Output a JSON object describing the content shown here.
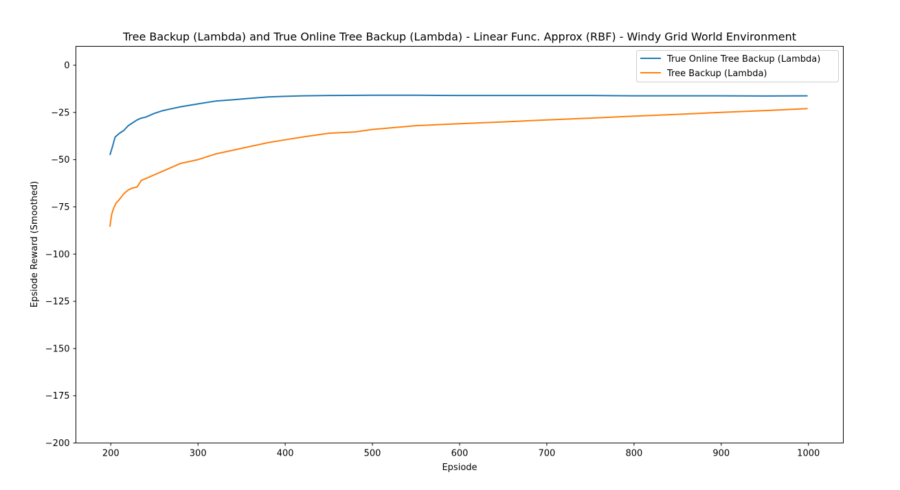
{
  "chart_data": {
    "type": "line",
    "title": "Tree Backup (Lambda) and True Online Tree Backup (Lambda) - Linear Func. Approx (RBF) - Windy Grid World Environment",
    "xlabel": "Epsiode",
    "ylabel": "Epsiode Reward (Smoothed)",
    "xlim": [
      160,
      1040
    ],
    "ylim": [
      -200,
      10
    ],
    "xticks": [
      200,
      300,
      400,
      500,
      600,
      700,
      800,
      900,
      1000
    ],
    "yticks": [
      0,
      -25,
      -50,
      -75,
      -100,
      -125,
      -150,
      -175,
      -200
    ],
    "xtick_labels": [
      "200",
      "300",
      "400",
      "500",
      "600",
      "700",
      "800",
      "900",
      "1000"
    ],
    "ytick_labels": [
      "0",
      "−25",
      "−50",
      "−75",
      "−100",
      "−125",
      "−150",
      "−175",
      "−200"
    ],
    "grid": false,
    "legend_position": "top-right",
    "series": [
      {
        "name": "True Online Tree Backup (Lambda)",
        "color": "#1f77b4",
        "x": [
          199,
          202,
          205,
          210,
          215,
          220,
          225,
          230,
          235,
          240,
          250,
          260,
          270,
          280,
          300,
          320,
          340,
          360,
          380,
          400,
          420,
          450,
          500,
          550,
          600,
          650,
          700,
          750,
          800,
          850,
          900,
          950,
          999
        ],
        "y": [
          -47.5,
          -43,
          -38,
          -36,
          -34.5,
          -32,
          -30.5,
          -29,
          -28,
          -27.5,
          -25.5,
          -24,
          -23,
          -22,
          -20.5,
          -19,
          -18.3,
          -17.5,
          -16.8,
          -16.5,
          -16.2,
          -16,
          -15.9,
          -15.9,
          -16,
          -16,
          -16,
          -16,
          -16.2,
          -16.2,
          -16.2,
          -16.3,
          -16.2
        ]
      },
      {
        "name": "Tree Backup (Lambda)",
        "color": "#ff7f0e",
        "x": [
          199,
          201,
          203,
          206,
          210,
          215,
          220,
          225,
          230,
          235,
          240,
          250,
          260,
          270,
          280,
          300,
          320,
          340,
          360,
          380,
          400,
          420,
          450,
          480,
          500,
          550,
          600,
          650,
          700,
          750,
          800,
          850,
          900,
          950,
          999
        ],
        "y": [
          -85.5,
          -79,
          -76,
          -73,
          -71,
          -68,
          -66,
          -65,
          -64.5,
          -61,
          -60,
          -58,
          -56,
          -54,
          -52,
          -50,
          -47,
          -45,
          -43,
          -41,
          -39.5,
          -38,
          -36,
          -35.3,
          -34,
          -32,
          -31,
          -30,
          -29,
          -28,
          -27,
          -26,
          -25,
          -24,
          -23
        ]
      }
    ]
  }
}
